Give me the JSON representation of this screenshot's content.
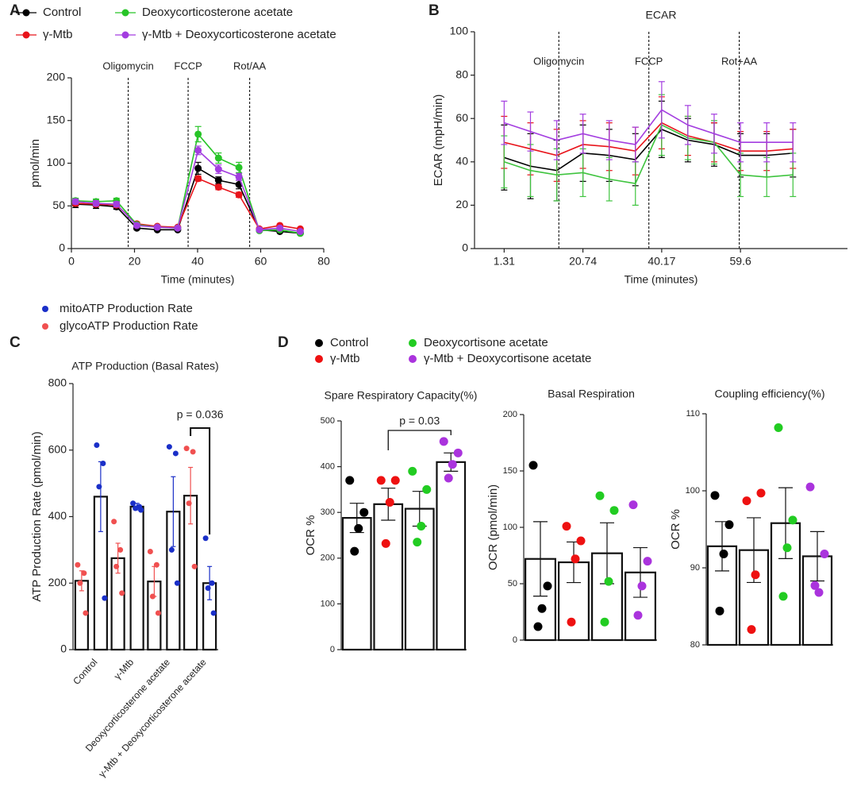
{
  "chart_data": [
    {
      "type": "line",
      "panel": "A",
      "ylabel": "pmol/min",
      "xlabel": "Time (minutes)",
      "xlim": [
        0,
        80
      ],
      "xticks": [
        0,
        20,
        40,
        60,
        80
      ],
      "ylim": [
        0,
        200
      ],
      "yticks": [
        0,
        50,
        100,
        150,
        200
      ],
      "x": [
        1.31,
        7.8,
        14.29,
        20.74,
        27.23,
        33.69,
        40.17,
        46.63,
        53.11,
        59.6,
        66.08,
        72.55
      ],
      "injections": [
        {
          "x": 18,
          "label": "Oligomycin"
        },
        {
          "x": 37,
          "label": "FCCP"
        },
        {
          "x": 56.5,
          "label": "Rot/AA"
        }
      ],
      "series": [
        {
          "name": "Control",
          "color": "#000000",
          "values": [
            52,
            51,
            49,
            24,
            22,
            22,
            94,
            80,
            75,
            22,
            20,
            18
          ],
          "errors": [
            4,
            4,
            3,
            2,
            1,
            1,
            7,
            4,
            5,
            2,
            1,
            1
          ]
        },
        {
          "name": "γ-Mtb",
          "color": "#e8141b",
          "values": [
            53,
            52,
            51,
            29,
            26,
            25,
            82,
            72,
            63,
            23,
            27,
            23
          ],
          "errors": [
            3,
            3,
            3,
            2,
            1,
            1,
            3,
            3,
            3,
            1,
            1,
            1
          ]
        },
        {
          "name": "Deoxycorticosterone acetate",
          "color": "#27c427",
          "values": [
            56,
            55,
            56,
            28,
            25,
            24,
            134,
            106,
            95,
            21,
            22,
            18
          ],
          "errors": [
            3,
            3,
            3,
            2,
            1,
            1,
            9,
            6,
            6,
            1,
            1,
            1
          ]
        },
        {
          "name": "γ-Mtb + Deoxycorticosterone acetate",
          "color": "#a33de0",
          "values": [
            55,
            53,
            52,
            27,
            25,
            24,
            115,
            93,
            84,
            22,
            24,
            20
          ],
          "errors": [
            3,
            3,
            3,
            2,
            1,
            1,
            5,
            5,
            4,
            1,
            1,
            1
          ]
        }
      ]
    },
    {
      "type": "line",
      "panel": "B",
      "title": "ECAR",
      "ylabel": "ECAR (mpH/min)",
      "xlabel": "Time (minutes)",
      "xlim": [
        -6,
        86
      ],
      "xticks": [
        1.31,
        20.74,
        40.17,
        59.6
      ],
      "ylim": [
        0,
        100
      ],
      "yticks": [
        0,
        20,
        40,
        60,
        80,
        100
      ],
      "x": [
        1.31,
        7.8,
        14.29,
        20.74,
        27.23,
        33.69,
        40.17,
        46.63,
        53.11,
        59.6,
        66.08,
        72.55
      ],
      "injections": [
        {
          "x": 14.8,
          "label": "Oligomycin"
        },
        {
          "x": 37,
          "label": "FCCP"
        },
        {
          "x": 59.3,
          "label": "Rot+AA"
        }
      ],
      "series": [
        {
          "color": "#000000",
          "values": [
            42,
            38,
            36,
            44,
            43,
            41,
            55,
            50,
            48,
            43,
            43,
            44
          ],
          "errors": [
            15,
            15,
            14,
            13,
            12,
            12,
            13,
            10,
            10,
            10,
            10,
            11
          ]
        },
        {
          "color": "#e8141b",
          "values": [
            49,
            46,
            43,
            48,
            47,
            45,
            58,
            52,
            49,
            45,
            45,
            46
          ],
          "errors": [
            12,
            12,
            12,
            11,
            11,
            11,
            12,
            9,
            9,
            9,
            9,
            9
          ]
        },
        {
          "color": "#3fc43f",
          "values": [
            40,
            36,
            34,
            35,
            32,
            30,
            57,
            51,
            49,
            34,
            33,
            34
          ],
          "errors": [
            12,
            12,
            12,
            11,
            10,
            10,
            14,
            10,
            10,
            10,
            9,
            10
          ]
        },
        {
          "color": "#a33de0",
          "values": [
            58,
            54,
            50,
            53,
            50,
            48,
            64,
            57,
            53,
            49,
            49,
            49
          ],
          "errors": [
            10,
            9,
            9,
            9,
            9,
            8,
            13,
            9,
            9,
            9,
            9,
            9
          ]
        }
      ]
    },
    {
      "type": "bar",
      "panel": "C",
      "title": "ATP Production (Basal Rates)",
      "ylabel": "ATP Production Rate (pmol/min)",
      "ylim": [
        0,
        800
      ],
      "yticks": [
        0,
        200,
        400,
        600,
        800
      ],
      "categories": [
        "Control",
        "γ-Mtb",
        "Deoxycorticosterone acetate",
        "γ-Mtb + Deoxycorticosterone acetate"
      ],
      "annotation": "p = 0.036",
      "series": [
        {
          "name": "glycoATP Production Rate",
          "color": "#f05050",
          "values": [
            207,
            275,
            205,
            463
          ],
          "errors": [
            30,
            45,
            45,
            85
          ],
          "points": [
            [
              255,
              230,
              200,
              110
            ],
            [
              385,
              300,
              250,
              170
            ],
            [
              295,
              255,
              160,
              110
            ],
            [
              605,
              595,
              440,
              250
            ]
          ]
        },
        {
          "name": "mitoATP Production Rate",
          "color": "#1a2fc8",
          "values": [
            460,
            430,
            415,
            200
          ],
          "errors": [
            105,
            10,
            105,
            50
          ],
          "points": [
            [
              615,
              560,
              490,
              155
            ],
            [
              440,
              430,
              425,
              420
            ],
            [
              610,
              590,
              300,
              200
            ],
            [
              335,
              200,
              185,
              110
            ]
          ]
        }
      ]
    },
    {
      "type": "dotbar",
      "panel": "D",
      "title": "Spare Respiratory Capacity(%)",
      "ylabel": "OCR %",
      "ylim": [
        0,
        500
      ],
      "yticks": [
        0,
        100,
        200,
        300,
        400,
        500
      ],
      "annotation": "p = 0.03",
      "legend": [
        "Control",
        "γ-Mtb",
        "Deoxycortisone acetate",
        "γ-Mtb + Deoxycortisone acetate"
      ],
      "colors": [
        "#000000",
        "#ee1111",
        "#22cc22",
        "#aa33dd"
      ],
      "values": [
        288,
        318,
        308,
        410
      ],
      "errors": [
        32,
        35,
        38,
        20
      ],
      "points": [
        [
          370,
          300,
          265,
          215
        ],
        [
          370,
          370,
          322,
          232
        ],
        [
          390,
          350,
          270,
          235
        ],
        [
          455,
          430,
          405,
          375
        ]
      ]
    },
    {
      "type": "dotbar",
      "title": "Basal Respiration",
      "ylabel": "OCR (pmol/min)",
      "ylim": [
        0,
        200
      ],
      "yticks": [
        0,
        50,
        100,
        150,
        200
      ],
      "colors": [
        "#000000",
        "#ee1111",
        "#22cc22",
        "#aa33dd"
      ],
      "values": [
        72,
        69,
        77,
        60
      ],
      "errors": [
        33,
        18,
        27,
        22
      ],
      "points": [
        [
          155,
          48,
          28,
          12
        ],
        [
          101,
          88,
          72,
          16
        ],
        [
          128,
          115,
          52,
          16
        ],
        [
          120,
          70,
          48,
          22
        ]
      ]
    },
    {
      "type": "dotbar",
      "title": "Coupling efficiency(%)",
      "ylabel": "OCR %",
      "ylim": [
        80,
        110
      ],
      "yticks": [
        80,
        90,
        100,
        110
      ],
      "colors": [
        "#000000",
        "#ee1111",
        "#22cc22",
        "#aa33dd"
      ],
      "values": [
        92.8,
        92.3,
        95.8,
        91.5
      ],
      "errors": [
        3.2,
        4.2,
        4.6,
        3.2
      ],
      "points": [
        [
          99.4,
          95.6,
          91.8,
          84.4
        ],
        [
          98.7,
          99.7,
          89.1,
          82.0
        ],
        [
          108.2,
          96.2,
          92.6,
          86.3
        ],
        [
          100.5,
          91.8,
          86.8,
          87.7
        ]
      ]
    }
  ]
}
